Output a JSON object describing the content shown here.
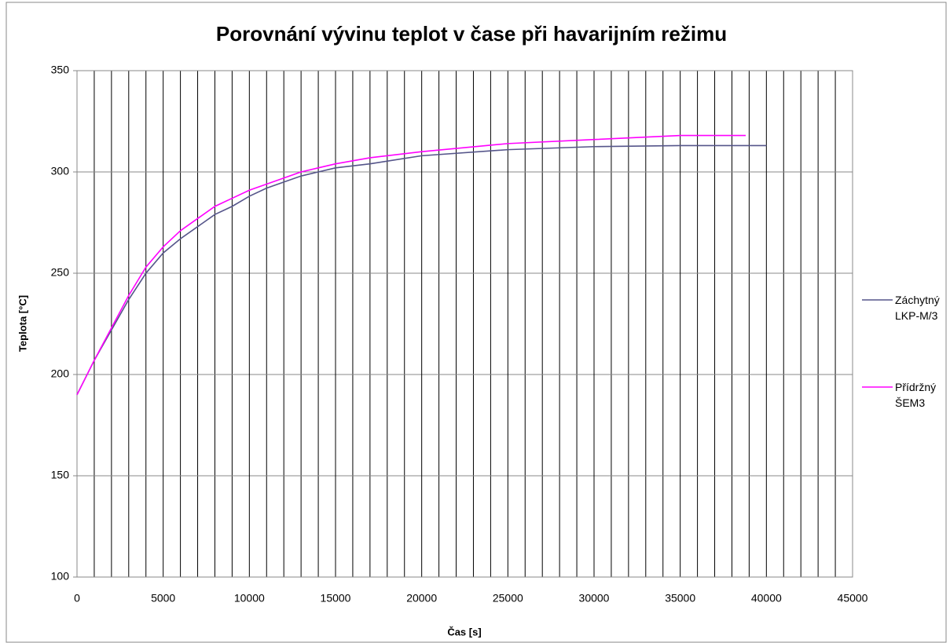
{
  "chart_data": {
    "type": "line",
    "title": "Porovnání vývinu teplot v čase při havarijním režimu",
    "x_label": "Čas [s]",
    "y_label": "Teplota [°C]",
    "xlim": [
      0,
      45000
    ],
    "xticks": [
      0,
      5000,
      10000,
      15000,
      20000,
      25000,
      30000,
      35000,
      40000,
      45000
    ],
    "x_minor_divisions": 5,
    "ylim": [
      100,
      350
    ],
    "yticks": [
      100,
      150,
      200,
      250,
      300,
      350
    ],
    "grid": true,
    "legend": "right",
    "series": [
      {
        "name": "Záchytný LKP-M/3",
        "color": "#55558a",
        "x": [
          0,
          1000,
          2000,
          3000,
          4000,
          5000,
          6000,
          7000,
          8000,
          9000,
          10000,
          11000,
          12000,
          13000,
          14000,
          15000,
          17000,
          20000,
          25000,
          30000,
          35000,
          40000
        ],
        "values": [
          190,
          207,
          222,
          237,
          250,
          260,
          267,
          273,
          279,
          283,
          288,
          292,
          295,
          298,
          300,
          302,
          304,
          308,
          311,
          312.5,
          313,
          313
        ]
      },
      {
        "name": "Přídržný ŠEM3",
        "color": "#ff00ff",
        "x": [
          0,
          1000,
          2000,
          3000,
          4000,
          5000,
          6000,
          7000,
          8000,
          9000,
          10000,
          11000,
          12000,
          13000,
          14000,
          15000,
          17000,
          20000,
          25000,
          30000,
          35000,
          38800
        ],
        "values": [
          190,
          207,
          223,
          239,
          253,
          263,
          271,
          277,
          283,
          287,
          291,
          294,
          297,
          300,
          302,
          304,
          307,
          310,
          314,
          316,
          318,
          318
        ]
      }
    ]
  }
}
